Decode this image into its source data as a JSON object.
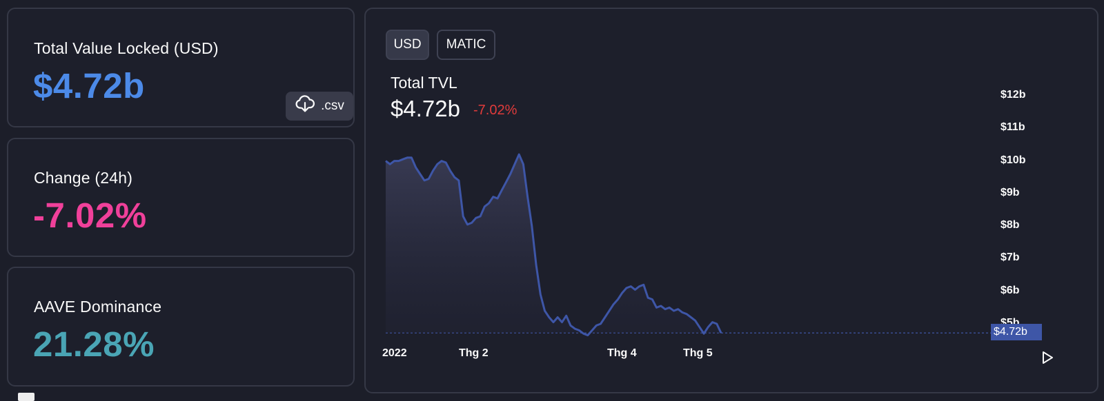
{
  "stats": {
    "tvl": {
      "label": "Total Value Locked (USD)",
      "value": "$4.72b",
      "color": "#4c8ae8"
    },
    "change": {
      "label": "Change (24h)",
      "value": "-7.02%",
      "color": "#f0409a"
    },
    "dominance": {
      "label": "AAVE Dominance",
      "value": "21.28%",
      "color": "#4aa5b5"
    },
    "csv_label": ".csv",
    "csv_icon": "cloud-download-icon"
  },
  "chart_panel": {
    "toggles": [
      {
        "label": "USD",
        "active": true
      },
      {
        "label": "MATIC",
        "active": false
      }
    ],
    "title": "Total TVL",
    "value": "$4.72b",
    "change": "-7.02%",
    "change_color": "#e03b3b",
    "current_price_tag": "$4.72b",
    "play_icon": "play-icon"
  },
  "chart_data": {
    "type": "area",
    "line_color": "#3e56a7",
    "y_ticks": [
      "$12b",
      "$11b",
      "$10b",
      "$9b",
      "$8b",
      "$7b",
      "$6b",
      "$5b"
    ],
    "y_tick_values": [
      12,
      11,
      10,
      9,
      8,
      7,
      6,
      5
    ],
    "x_ticks": [
      "2022",
      "Thg 2",
      "Thg 4",
      "Thg 5"
    ],
    "ylim": [
      4.6,
      12.6
    ],
    "current_value": 4.72,
    "series": [
      {
        "values": [
          10.0,
          9.9,
          10.0,
          10.0,
          10.05,
          10.1,
          10.1,
          9.8,
          9.6,
          9.4,
          9.45,
          9.7,
          9.9,
          10.0,
          9.95,
          9.7,
          9.5,
          9.4,
          8.3,
          8.05,
          8.1,
          8.25,
          8.3,
          8.6,
          8.7,
          8.9,
          8.85,
          9.1,
          9.35,
          9.6,
          9.9,
          10.2,
          9.9,
          8.9,
          8.0,
          6.8,
          5.9,
          5.4,
          5.2,
          5.05,
          5.2,
          5.05,
          5.25,
          4.95,
          4.85,
          4.8,
          4.7,
          4.65,
          4.8,
          4.95,
          5.0,
          5.2,
          5.4,
          5.6,
          5.75,
          5.95,
          6.1,
          6.15,
          6.05,
          6.15,
          6.2,
          5.8,
          5.75,
          5.5,
          5.55,
          5.45,
          5.5,
          5.4,
          5.45,
          5.35,
          5.3,
          5.2,
          5.1,
          4.9,
          4.7,
          4.9,
          5.05,
          5.0,
          4.72
        ]
      }
    ]
  }
}
